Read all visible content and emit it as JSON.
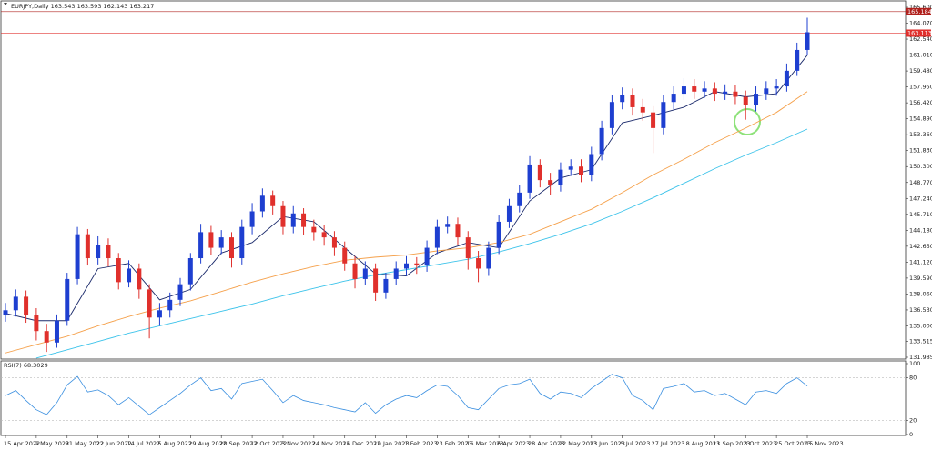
{
  "chart_data": {
    "type": "candlestick",
    "title": "EURJPY,Daily  163.543 163.593 162.143 163.217",
    "categories": [
      "15 Apr 2022",
      null,
      null,
      "9 May 2022",
      null,
      null,
      "31 May 2022",
      null,
      null,
      "22 Jun 2022",
      null,
      null,
      "14 Jul 2022",
      null,
      null,
      "5 Aug 2022",
      null,
      null,
      "29 Aug 2022",
      null,
      null,
      "20 Sep 2022",
      null,
      null,
      "12 Oct 2022",
      null,
      null,
      "3 Nov 2022",
      null,
      null,
      "24 Nov 2022",
      null,
      null,
      "16 Dec 2022",
      null,
      null,
      "10 Jan 2023",
      null,
      null,
      "1 Feb 2023",
      null,
      null,
      "23 Feb 2023",
      null,
      null,
      "16 Mar 2023",
      null,
      null,
      "6 Apr 2023",
      null,
      null,
      "28 Apr 2023",
      null,
      null,
      "22 May 2023",
      null,
      null,
      "13 Jun 2023",
      null,
      null,
      "5 Jul 2023",
      null,
      null,
      "27 Jul 2023",
      null,
      null,
      "18 Aug 2023",
      null,
      null,
      "11 Sep 2023",
      null,
      null,
      "3 Oct 2023",
      null,
      null,
      "25 Oct 2023",
      null,
      null,
      "15 Nov 2023"
    ],
    "candles": {
      "open": [
        136.0,
        136.5,
        137.8,
        136.0,
        134.5,
        133.4,
        135.5,
        139.5,
        143.8,
        141.5,
        142.8,
        141.5,
        139.2,
        140.5,
        138.5,
        135.8,
        136.5,
        137.5,
        139.0,
        141.5,
        144.0,
        142.5,
        143.5,
        141.5,
        144.5,
        146.0,
        147.5,
        146.5,
        144.5,
        145.8,
        144.5,
        144.0,
        143.5,
        142.5,
        141.0,
        139.5,
        140.5,
        138.2,
        139.5,
        140.5,
        141.0,
        140.8,
        142.5,
        144.5,
        144.8,
        143.5,
        141.5,
        140.5,
        142.5,
        145.0,
        146.5,
        147.8,
        150.5,
        149.0,
        148.5,
        150.0,
        150.3,
        149.5,
        151.5,
        154.0,
        156.5,
        157.2,
        156.0,
        155.5,
        154.0,
        156.5,
        157.3,
        158.0,
        157.5,
        157.8,
        157.3,
        157.5,
        157.0,
        156.2,
        157.3,
        157.8,
        158.0,
        159.5,
        161.5
      ],
      "high": [
        137.2,
        138.5,
        138.4,
        136.7,
        135.2,
        136.1,
        140.1,
        144.5,
        144.3,
        143.6,
        143.4,
        142.0,
        141.3,
        141.0,
        139.0,
        137.2,
        138.2,
        139.6,
        142.0,
        144.8,
        144.6,
        144.2,
        144.0,
        145.2,
        146.8,
        148.2,
        148.0,
        147.0,
        146.5,
        146.3,
        145.2,
        144.7,
        144.1,
        143.1,
        141.7,
        141.2,
        141.0,
        140.1,
        141.2,
        141.7,
        141.6,
        143.2,
        145.2,
        145.5,
        145.4,
        144.1,
        142.2,
        143.1,
        145.6,
        147.2,
        148.5,
        151.3,
        151.0,
        149.7,
        150.7,
        151.0,
        151.0,
        152.2,
        154.7,
        157.2,
        157.9,
        157.8,
        156.8,
        156.1,
        157.2,
        158.0,
        158.8,
        158.7,
        158.5,
        158.4,
        158.2,
        158.1,
        157.6,
        158.0,
        158.5,
        158.7,
        160.2,
        162.2,
        164.6
      ],
      "low": [
        135.4,
        135.9,
        135.3,
        133.6,
        132.5,
        132.9,
        135.0,
        139.0,
        140.8,
        140.9,
        140.7,
        138.5,
        138.7,
        137.6,
        133.8,
        135.0,
        135.8,
        136.9,
        138.4,
        141.0,
        141.8,
        141.9,
        140.6,
        140.9,
        143.8,
        145.4,
        145.7,
        143.8,
        143.9,
        143.7,
        143.2,
        142.7,
        141.7,
        140.3,
        138.6,
        138.9,
        137.4,
        137.6,
        138.9,
        139.8,
        140.0,
        140.2,
        141.9,
        143.9,
        142.8,
        140.4,
        139.2,
        139.8,
        141.9,
        144.4,
        145.9,
        147.2,
        148.3,
        147.6,
        147.9,
        149.4,
        148.8,
        148.9,
        150.9,
        153.4,
        155.8,
        155.2,
        154.7,
        151.6,
        153.4,
        155.8,
        156.7,
        156.8,
        156.9,
        156.6,
        156.7,
        156.3,
        154.8,
        155.6,
        156.7,
        157.1,
        157.5,
        159.0,
        161.0
      ],
      "close": [
        136.5,
        137.8,
        136.0,
        134.5,
        133.4,
        135.5,
        139.5,
        143.8,
        141.5,
        142.8,
        141.5,
        139.2,
        140.5,
        138.5,
        135.8,
        136.5,
        137.5,
        139.0,
        141.5,
        144.0,
        142.5,
        143.5,
        141.5,
        144.5,
        146.0,
        147.5,
        146.5,
        144.5,
        145.8,
        144.5,
        144.0,
        143.5,
        142.5,
        141.0,
        139.5,
        140.5,
        138.2,
        139.5,
        140.5,
        141.0,
        140.8,
        142.5,
        144.5,
        144.8,
        143.5,
        141.5,
        140.5,
        142.5,
        145.0,
        146.5,
        147.8,
        150.5,
        149.0,
        148.5,
        150.0,
        150.3,
        149.5,
        151.5,
        154.0,
        156.5,
        157.2,
        156.0,
        155.5,
        154.0,
        156.5,
        157.3,
        158.0,
        157.5,
        157.8,
        157.3,
        157.5,
        157.0,
        156.2,
        157.3,
        157.8,
        158.0,
        159.5,
        161.5,
        163.2
      ]
    },
    "up_color": "#1e3fd0",
    "down_color": "#e0302c",
    "moving_averages": [
      {
        "color": "#1b2a6b",
        "x": [
          0,
          3,
          6,
          9,
          12,
          15,
          18,
          21,
          24,
          27,
          30,
          33,
          36,
          39,
          42,
          45,
          48,
          51,
          54,
          57,
          60,
          63,
          66,
          69,
          72,
          75,
          78
        ],
        "values": [
          136.2,
          135.5,
          135.5,
          140.5,
          141.0,
          137.5,
          138.5,
          142.0,
          143.0,
          145.5,
          145.0,
          142.5,
          140.0,
          139.8,
          142.0,
          143.0,
          142.5,
          147.0,
          149.2,
          150.0,
          154.5,
          155.2,
          156.0,
          157.5,
          157.0,
          157.3,
          161.0
        ]
      },
      {
        "color": "#f5a04a",
        "x": [
          0,
          3,
          6,
          9,
          12,
          15,
          18,
          21,
          24,
          27,
          30,
          33,
          36,
          39,
          42,
          45,
          48,
          51,
          54,
          57,
          60,
          63,
          66,
          69,
          72,
          75,
          78
        ],
        "values": [
          132.4,
          133.2,
          134.0,
          135.0,
          135.9,
          136.7,
          137.4,
          138.3,
          139.2,
          140.0,
          140.7,
          141.3,
          141.6,
          141.8,
          142.2,
          142.5,
          143.0,
          143.8,
          145.0,
          146.2,
          147.8,
          149.5,
          151.0,
          152.6,
          154.0,
          155.5,
          157.5
        ]
      },
      {
        "color": "#3cc3ea",
        "x": [
          0,
          3,
          6,
          9,
          12,
          15,
          18,
          21,
          24,
          27,
          30,
          33,
          36,
          39,
          42,
          45,
          48,
          51,
          54,
          57,
          60,
          63,
          66,
          69,
          72,
          75,
          78
        ],
        "values": [
          null,
          131.9,
          132.7,
          133.5,
          134.3,
          135.0,
          135.7,
          136.4,
          137.1,
          137.9,
          138.6,
          139.3,
          139.9,
          140.4,
          140.9,
          141.4,
          142.1,
          142.9,
          143.8,
          144.8,
          146.0,
          147.3,
          148.7,
          150.1,
          151.4,
          152.6,
          153.9
        ]
      }
    ],
    "price_lines": [
      {
        "value": 163.113,
        "label": "163.113",
        "color": "#e0302c"
      },
      {
        "value": 165.184,
        "label": "165.184",
        "color": "#b0201c"
      }
    ],
    "ylim": [
      131.985,
      165.6
    ],
    "yticks": [
      {
        "value": 165.6,
        "label": "165.600"
      },
      {
        "value": 164.07,
        "label": "164.070"
      },
      {
        "value": 162.54,
        "label": "162.540"
      },
      {
        "value": 161.01,
        "label": "161.010"
      },
      {
        "value": 159.48,
        "label": "159.480"
      },
      {
        "value": 157.95,
        "label": "157.950"
      },
      {
        "value": 156.42,
        "label": "156.420"
      },
      {
        "value": 154.89,
        "label": "154.890"
      },
      {
        "value": 153.36,
        "label": "153.360"
      },
      {
        "value": 151.83,
        "label": "151.830"
      },
      {
        "value": 150.3,
        "label": "150.300"
      },
      {
        "value": 148.77,
        "label": "148.770"
      },
      {
        "value": 147.24,
        "label": "147.240"
      },
      {
        "value": 145.71,
        "label": "145.710"
      },
      {
        "value": 144.18,
        "label": "144.180"
      },
      {
        "value": 142.65,
        "label": "142.650"
      },
      {
        "value": 141.12,
        "label": "141.120"
      },
      {
        "value": 139.59,
        "label": "139.590"
      },
      {
        "value": 138.06,
        "label": "138.060"
      },
      {
        "value": 136.53,
        "label": "136.530"
      },
      {
        "value": 135.0,
        "label": "135.000"
      },
      {
        "value": 133.515,
        "label": "133.515"
      },
      {
        "value": 131.985,
        "label": "131.985"
      }
    ],
    "rsi": {
      "title": "RSI(7) 68.3029",
      "color": "#3a8fe0",
      "values": [
        55,
        62,
        48,
        35,
        28,
        45,
        70,
        82,
        60,
        63,
        55,
        42,
        52,
        40,
        28,
        38,
        48,
        58,
        70,
        80,
        62,
        65,
        50,
        72,
        75,
        78,
        62,
        45,
        55,
        48,
        45,
        42,
        38,
        35,
        32,
        45,
        30,
        42,
        50,
        55,
        52,
        62,
        70,
        68,
        55,
        38,
        35,
        50,
        65,
        70,
        72,
        78,
        58,
        50,
        60,
        58,
        52,
        65,
        75,
        85,
        80,
        55,
        48,
        35,
        65,
        68,
        72,
        60,
        62,
        55,
        58,
        50,
        42,
        60,
        62,
        58,
        72,
        80,
        68.3029
      ],
      "ylim": [
        0,
        100
      ],
      "yticks": [
        100,
        80,
        20,
        0
      ],
      "levels": [
        80,
        20
      ]
    }
  }
}
